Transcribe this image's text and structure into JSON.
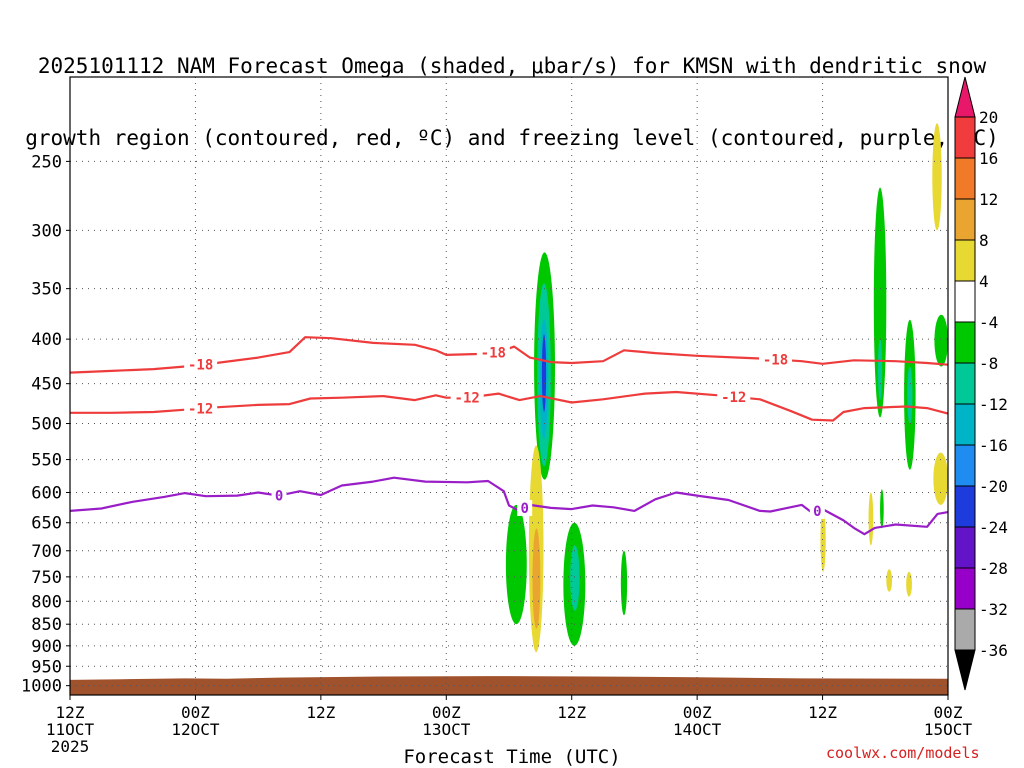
{
  "chart_data": {
    "type": "heatmap",
    "title": "2025101112 NAM Forecast Omega (shaded, μbar/s) for KMSN with dendritic snow growth region (contoured, red, ºC) and freezing level (contoured, purple, ºC)",
    "title_lines": [
      "2025101112 NAM Forecast Omega (shaded, μbar/s) for KMSN with dendritic snow",
      "growth region (contoured, red, ºC) and freezing level (contoured, purple, ºC)"
    ],
    "xlabel": "Forecast Time (UTC)",
    "ylabel": "",
    "x_ticks": [
      {
        "hour": 0,
        "lines": [
          "12Z",
          "11OCT",
          "2025"
        ]
      },
      {
        "hour": 12,
        "lines": [
          "00Z",
          "12OCT"
        ]
      },
      {
        "hour": 24,
        "lines": [
          "12Z"
        ]
      },
      {
        "hour": 36,
        "lines": [
          "00Z",
          "13OCT"
        ]
      },
      {
        "hour": 48,
        "lines": [
          "12Z"
        ]
      },
      {
        "hour": 60,
        "lines": [
          "00Z",
          "14OCT"
        ]
      },
      {
        "hour": 72,
        "lines": [
          "12Z"
        ]
      },
      {
        "hour": 84,
        "lines": [
          "00Z",
          "15OCT"
        ]
      }
    ],
    "xlim": [
      0,
      84
    ],
    "y_scale": "log-pressure",
    "y_ticks": [
      250,
      300,
      350,
      400,
      450,
      500,
      550,
      600,
      650,
      700,
      750,
      800,
      850,
      900,
      950,
      1000
    ],
    "ylim": [
      200,
      1025
    ],
    "grid": "dotted",
    "colorbar": {
      "labels": [
        "20",
        "16",
        "12",
        "8",
        "4",
        "-4",
        "-8",
        "-12",
        "-16",
        "-20",
        "-24",
        "-28",
        "-32",
        "-36"
      ],
      "colors": [
        "#e8176a",
        "#f03c3c",
        "#f07a28",
        "#e9a530",
        "#e8d832",
        "#ffffff",
        "#00c800",
        "#00c896",
        "#00b4c8",
        "#1e8cf0",
        "#1e3cdc",
        "#6414c8",
        "#9600c8",
        "#aaaaaa",
        "#000000"
      ]
    },
    "series": [
      {
        "name": "-18",
        "color": "#ee3c3c",
        "type": "contour",
        "label_positions": [
          12.5,
          40.5,
          67.5
        ],
        "points": [
          [
            0,
            437
          ],
          [
            4,
            435
          ],
          [
            8,
            433
          ],
          [
            11,
            430
          ],
          [
            14,
            426
          ],
          [
            18,
            420
          ],
          [
            21,
            414
          ],
          [
            22.5,
            398
          ],
          [
            25,
            399
          ],
          [
            29,
            404
          ],
          [
            33,
            406
          ],
          [
            35,
            412
          ],
          [
            36,
            417
          ],
          [
            39,
            416
          ],
          [
            41,
            414
          ],
          [
            42.5,
            408
          ],
          [
            44,
            420
          ],
          [
            46,
            425
          ],
          [
            48,
            426
          ],
          [
            51,
            424
          ],
          [
            53,
            412
          ],
          [
            56,
            415
          ],
          [
            60,
            418
          ],
          [
            64,
            420
          ],
          [
            66,
            421
          ],
          [
            70,
            424
          ],
          [
            72,
            427
          ],
          [
            75,
            423
          ],
          [
            79,
            424
          ],
          [
            82,
            426
          ],
          [
            84,
            428
          ]
        ]
      },
      {
        "name": "-12",
        "color": "#ee3c3c",
        "type": "contour",
        "label_positions": [
          12.5,
          38,
          63.5
        ],
        "points": [
          [
            0,
            486
          ],
          [
            4,
            486
          ],
          [
            8,
            485
          ],
          [
            11,
            482
          ],
          [
            14,
            479
          ],
          [
            18,
            476
          ],
          [
            21,
            475
          ],
          [
            23,
            468
          ],
          [
            26,
            467
          ],
          [
            30,
            465
          ],
          [
            33,
            470
          ],
          [
            35,
            464
          ],
          [
            36,
            467
          ],
          [
            38,
            467
          ],
          [
            41,
            462
          ],
          [
            43,
            470
          ],
          [
            45,
            465
          ],
          [
            48,
            473
          ],
          [
            51,
            469
          ],
          [
            55,
            462
          ],
          [
            58,
            460
          ],
          [
            62,
            464
          ],
          [
            66,
            469
          ],
          [
            69,
            484
          ],
          [
            71,
            495
          ],
          [
            73,
            496
          ],
          [
            74,
            485
          ],
          [
            76,
            480
          ],
          [
            80,
            478
          ],
          [
            82,
            480
          ],
          [
            84,
            487
          ]
        ]
      },
      {
        "name": "0",
        "color": "#9a1ec8",
        "type": "contour",
        "label_positions": [
          20,
          43.5,
          71.5
        ],
        "points": [
          [
            0,
            630
          ],
          [
            3,
            626
          ],
          [
            6,
            615
          ],
          [
            9,
            607
          ],
          [
            11,
            601
          ],
          [
            13,
            606
          ],
          [
            16,
            605
          ],
          [
            18,
            600
          ],
          [
            20,
            605
          ],
          [
            22,
            598
          ],
          [
            24,
            604
          ],
          [
            26,
            589
          ],
          [
            29,
            583
          ],
          [
            31,
            577
          ],
          [
            34,
            583
          ],
          [
            38,
            584
          ],
          [
            40,
            582
          ],
          [
            41.5,
            598
          ],
          [
            42,
            621
          ],
          [
            43,
            630
          ],
          [
            44,
            620
          ],
          [
            46,
            625
          ],
          [
            48,
            627
          ],
          [
            50,
            621
          ],
          [
            52,
            624
          ],
          [
            54,
            630
          ],
          [
            56,
            611
          ],
          [
            58,
            600
          ],
          [
            60,
            605
          ],
          [
            63,
            612
          ],
          [
            66,
            630
          ],
          [
            67,
            631
          ],
          [
            70,
            620
          ],
          [
            71,
            633
          ],
          [
            72,
            627
          ],
          [
            74,
            646
          ],
          [
            75,
            659
          ],
          [
            76,
            670
          ],
          [
            77,
            659
          ],
          [
            79,
            653
          ],
          [
            82,
            657
          ],
          [
            83,
            635
          ],
          [
            84,
            632
          ]
        ]
      }
    ],
    "shaded_regions": [
      {
        "color": "#00c800",
        "x": 44.4,
        "w": 2.0,
        "p_top": 318,
        "p_bot": 580
      },
      {
        "color": "#00c896",
        "x": 44.7,
        "w": 1.3,
        "p_top": 345,
        "p_bot": 560
      },
      {
        "color": "#00b4c8",
        "x": 44.95,
        "w": 0.8,
        "p_top": 380,
        "p_bot": 520
      },
      {
        "color": "#1e3cdc",
        "x": 45.15,
        "w": 0.4,
        "p_top": 395,
        "p_bot": 485
      },
      {
        "color": "#e8d832",
        "x": 43.9,
        "w": 1.4,
        "p_top": 530,
        "p_bot": 915
      },
      {
        "color": "#e9a530",
        "x": 44.25,
        "w": 0.75,
        "p_top": 660,
        "p_bot": 860
      },
      {
        "color": "#00c800",
        "x": 41.7,
        "w": 2.0,
        "p_top": 620,
        "p_bot": 850
      },
      {
        "color": "#00c800",
        "x": 47.2,
        "w": 2.1,
        "p_top": 650,
        "p_bot": 900
      },
      {
        "color": "#00c896",
        "x": 47.85,
        "w": 0.9,
        "p_top": 690,
        "p_bot": 820
      },
      {
        "color": "#00c800",
        "x": 52.7,
        "w": 0.6,
        "p_top": 700,
        "p_bot": 830
      },
      {
        "color": "#e8d832",
        "x": 71.8,
        "w": 0.5,
        "p_top": 625,
        "p_bot": 740
      },
      {
        "color": "#00c800",
        "x": 76.9,
        "w": 1.2,
        "p_top": 268,
        "p_bot": 492
      },
      {
        "color": "#00c896",
        "x": 77.3,
        "w": 0.4,
        "p_top": 400,
        "p_bot": 470
      },
      {
        "color": "#00c800",
        "x": 79.8,
        "w": 1.1,
        "p_top": 380,
        "p_bot": 565
      },
      {
        "color": "#00c896",
        "x": 80.1,
        "w": 0.5,
        "p_top": 430,
        "p_bot": 500
      },
      {
        "color": "#e8d832",
        "x": 76.4,
        "w": 0.45,
        "p_top": 600,
        "p_bot": 690
      },
      {
        "color": "#00c800",
        "x": 77.5,
        "w": 0.35,
        "p_top": 595,
        "p_bot": 660
      },
      {
        "color": "#e8d832",
        "x": 78.1,
        "w": 0.55,
        "p_top": 735,
        "p_bot": 780
      },
      {
        "color": "#e8d832",
        "x": 80.0,
        "w": 0.55,
        "p_top": 740,
        "p_bot": 790
      },
      {
        "color": "#e8d832",
        "x": 82.5,
        "w": 0.9,
        "p_top": 226,
        "p_bot": 300
      },
      {
        "color": "#00c800",
        "x": 82.7,
        "w": 1.3,
        "p_top": 375,
        "p_bot": 430
      },
      {
        "color": "#e8d832",
        "x": 82.6,
        "w": 1.4,
        "p_top": 540,
        "p_bot": 620
      }
    ],
    "terrain": {
      "color": "#a0522d",
      "points": [
        [
          0,
          985
        ],
        [
          5,
          983
        ],
        [
          11,
          981
        ],
        [
          15,
          982
        ],
        [
          20,
          979
        ],
        [
          30,
          976
        ],
        [
          40,
          975
        ],
        [
          50,
          976
        ],
        [
          60,
          978
        ],
        [
          70,
          981
        ],
        [
          84,
          982
        ]
      ]
    }
  },
  "credit": "coolwx.com/models"
}
